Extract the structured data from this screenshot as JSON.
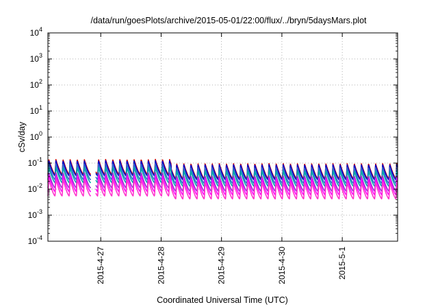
{
  "chart_data": {
    "type": "line",
    "title": "/data/run/goesPlots/archive/2015-05-01/22:00/flux/../bryn/5daysMars.plot",
    "xlabel": "Coordinated Universal Time (UTC)",
    "ylabel": "cSv/day",
    "y_scale": "log",
    "ylim": [
      0.0001,
      10000
    ],
    "y_ticks": [
      {
        "base": "10",
        "exp": "-4"
      },
      {
        "base": "10",
        "exp": "-3"
      },
      {
        "base": "10",
        "exp": "-2"
      },
      {
        "base": "10",
        "exp": "-1"
      },
      {
        "base": "10",
        "exp": "0"
      },
      {
        "base": "10",
        "exp": "1"
      },
      {
        "base": "10",
        "exp": "2"
      },
      {
        "base": "10",
        "exp": "3"
      },
      {
        "base": "10",
        "exp": "4"
      }
    ],
    "xlim": [
      "2015-04-26 03:00",
      "2015-05-01 22:00"
    ],
    "x_ticks": [
      {
        "label": "2015-4-27",
        "date": "2015-04-27"
      },
      {
        "label": "2015-4-28",
        "date": "2015-04-28"
      },
      {
        "label": "2015-4-29",
        "date": "2015-04-29"
      },
      {
        "label": "2015-4-30",
        "date": "2015-04-30"
      },
      {
        "label": "2015-5-1",
        "date": "2015-05-01"
      }
    ],
    "grid": true,
    "pattern_note_values": {
      "cycles_per_day": 8.5,
      "missing_segment": [
        "2015-04-26 20:00",
        "2015-04-26 22:00"
      ]
    },
    "series": [
      {
        "color": "#cc0000",
        "peak": 0.105,
        "min": 0.028
      },
      {
        "color": "#0000cc",
        "peak": 0.095,
        "min": 0.025
      },
      {
        "color": "#3366cc",
        "peak": 0.075,
        "min": 0.018
      },
      {
        "color": "#00aaaa",
        "peak": 0.055,
        "min": 0.014
      },
      {
        "color": "#9933cc",
        "peak": 0.035,
        "min": 0.009
      },
      {
        "color": "#ff00ff",
        "peak": 0.028,
        "min": 0.0065
      },
      {
        "color": "#ff33cc",
        "peak": 0.02,
        "min": 0.0045
      }
    ]
  }
}
